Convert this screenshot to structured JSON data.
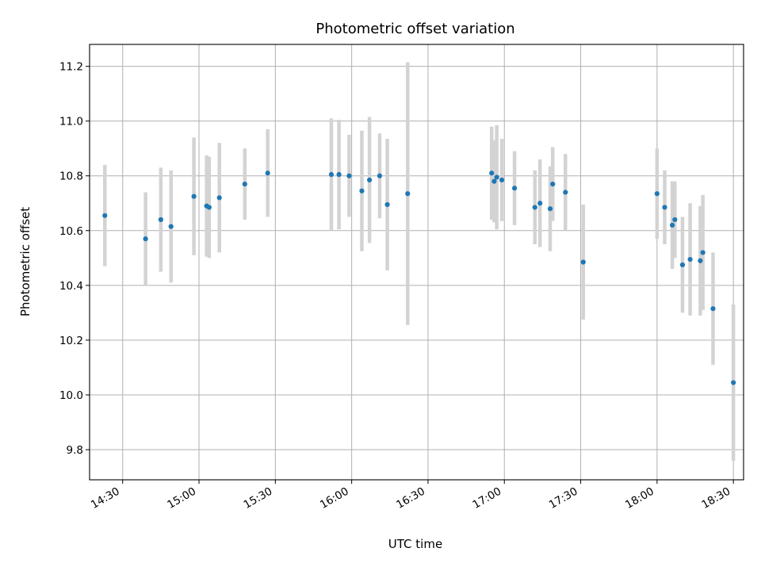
{
  "chart_data": {
    "type": "scatter",
    "title": "Photometric offset variation",
    "xlabel": "UTC time",
    "ylabel": "Photometric offset",
    "x_ticks": [
      "14:30",
      "15:00",
      "15:30",
      "16:00",
      "16:30",
      "17:00",
      "17:30",
      "18:00",
      "18:30"
    ],
    "y_ticks": [
      "9.8",
      "10.0",
      "10.2",
      "10.4",
      "10.6",
      "10.8",
      "11.0",
      "11.2"
    ],
    "xlim": [
      "14:17",
      "18:34"
    ],
    "ylim": [
      9.69,
      11.28
    ],
    "grid": true,
    "marker_color": "#1f77b4",
    "errorbar_color": "#d3d3d3",
    "points": [
      {
        "t": "14:23",
        "y": 10.655,
        "err": 0.185
      },
      {
        "t": "14:39",
        "y": 10.57,
        "err": 0.17
      },
      {
        "t": "14:45",
        "y": 10.64,
        "err": 0.19
      },
      {
        "t": "14:49",
        "y": 10.615,
        "err": 0.205
      },
      {
        "t": "14:58",
        "y": 10.725,
        "err": 0.215
      },
      {
        "t": "15:03",
        "y": 10.69,
        "err": 0.185
      },
      {
        "t": "15:04",
        "y": 10.685,
        "err": 0.185
      },
      {
        "t": "15:08",
        "y": 10.72,
        "err": 0.2
      },
      {
        "t": "15:18",
        "y": 10.77,
        "err": 0.13
      },
      {
        "t": "15:27",
        "y": 10.81,
        "err": 0.16
      },
      {
        "t": "15:52",
        "y": 10.805,
        "err": 0.205
      },
      {
        "t": "15:55",
        "y": 10.805,
        "err": 0.2
      },
      {
        "t": "15:59",
        "y": 10.8,
        "err": 0.15
      },
      {
        "t": "16:04",
        "y": 10.745,
        "err": 0.22
      },
      {
        "t": "16:07",
        "y": 10.785,
        "err": 0.23
      },
      {
        "t": "16:11",
        "y": 10.8,
        "err": 0.155
      },
      {
        "t": "16:14",
        "y": 10.695,
        "err": 0.24
      },
      {
        "t": "16:22",
        "y": 10.735,
        "err": 0.48
      },
      {
        "t": "16:55",
        "y": 10.81,
        "err": 0.17
      },
      {
        "t": "16:56",
        "y": 10.78,
        "err": 0.15
      },
      {
        "t": "16:57",
        "y": 10.795,
        "err": 0.19
      },
      {
        "t": "16:59",
        "y": 10.785,
        "err": 0.15
      },
      {
        "t": "17:04",
        "y": 10.755,
        "err": 0.135
      },
      {
        "t": "17:12",
        "y": 10.685,
        "err": 0.135
      },
      {
        "t": "17:14",
        "y": 10.7,
        "err": 0.16
      },
      {
        "t": "17:18",
        "y": 10.68,
        "err": 0.155
      },
      {
        "t": "17:19",
        "y": 10.77,
        "err": 0.135
      },
      {
        "t": "17:24",
        "y": 10.74,
        "err": 0.14
      },
      {
        "t": "17:31",
        "y": 10.485,
        "err": 0.21
      },
      {
        "t": "18:00",
        "y": 10.735,
        "err": 0.165
      },
      {
        "t": "18:03",
        "y": 10.685,
        "err": 0.135
      },
      {
        "t": "18:06",
        "y": 10.62,
        "err": 0.16
      },
      {
        "t": "18:07",
        "y": 10.64,
        "err": 0.14
      },
      {
        "t": "18:10",
        "y": 10.475,
        "err": 0.175
      },
      {
        "t": "18:13",
        "y": 10.495,
        "err": 0.205
      },
      {
        "t": "18:17",
        "y": 10.49,
        "err": 0.2
      },
      {
        "t": "18:18",
        "y": 10.52,
        "err": 0.21
      },
      {
        "t": "18:22",
        "y": 10.315,
        "err": 0.205
      },
      {
        "t": "18:30",
        "y": 10.045,
        "err": 0.285
      }
    ]
  }
}
